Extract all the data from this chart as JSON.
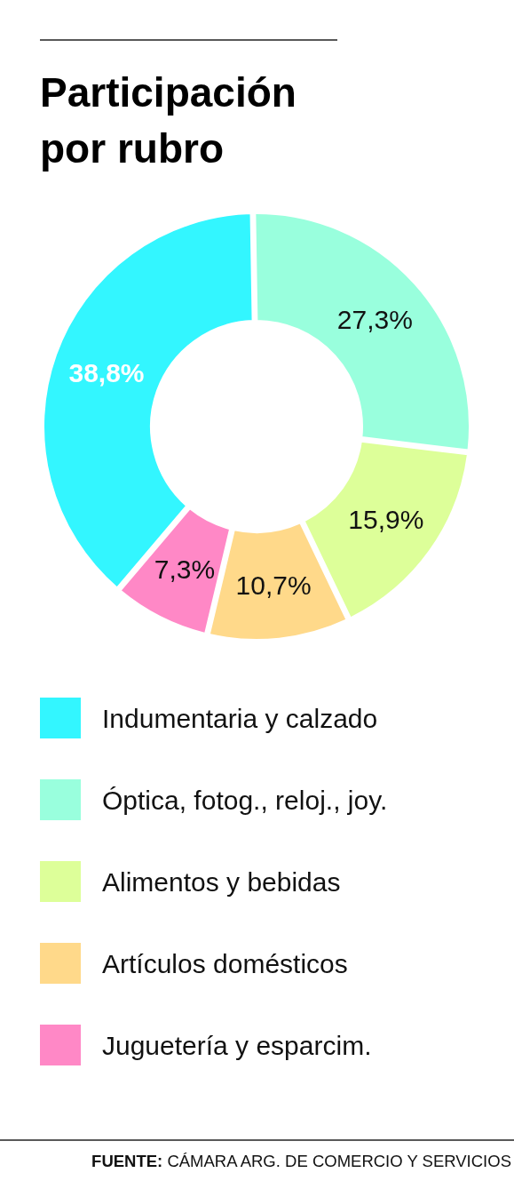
{
  "chart_data": {
    "type": "donut",
    "title": "Participación por rubro",
    "categories": [
      "Indumentaria y calzado",
      "Óptica, fotog., reloj., joy.",
      "Alimentos y bebidas",
      "Artículos domésticos",
      "Juguetería y esparcim."
    ],
    "values": [
      38.8,
      27.3,
      15.9,
      10.7,
      7.3
    ],
    "value_labels": [
      "38,8%",
      "27,3%",
      "15,9%",
      "10,7%",
      "7,3%"
    ],
    "colors": [
      "#33f6ff",
      "#99ffdd",
      "#ddff99",
      "#ffd98a",
      "#ff88c6"
    ],
    "legend": "bottom",
    "annotations": [
      "FUENTE: CÁMARA ARG. DE COMERCIO Y SERVICIOS"
    ]
  }
}
